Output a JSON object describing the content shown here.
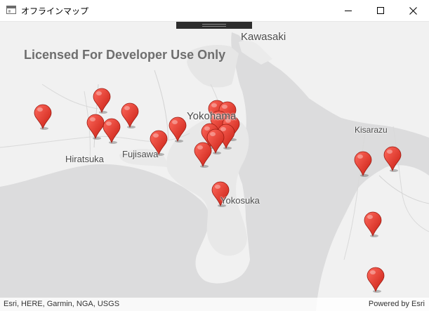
{
  "window": {
    "title": "オフラインマップ",
    "icon": "app-window-icon",
    "controls": [
      "minimize-icon",
      "maximize-icon",
      "close-icon"
    ]
  },
  "map": {
    "watermark": "Licensed For Developer Use Only",
    "places": {
      "kawasaki": "Kawasaki",
      "yokohama": "Yokohama",
      "kisarazu": "Kisarazu",
      "hiratsuka": "Hiratsuka",
      "fujisawa": "Fujisawa",
      "yokosuka": "Yokosuka"
    },
    "attribution": "Esri, HERE, Garmin, NGA, USGS",
    "powered_by": "Powered by Esri",
    "marker_color": "#e8382b",
    "water_color": "#dcdcdd",
    "land_color": "#f1f1f1",
    "urban_color": "#e8e8e8"
  }
}
